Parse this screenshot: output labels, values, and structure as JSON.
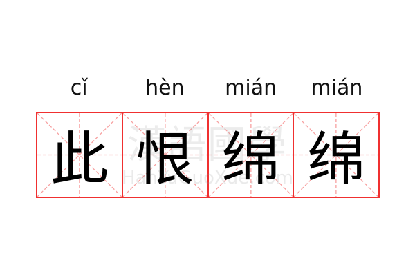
{
  "words": [
    {
      "pinyin": "cǐ",
      "char": "此"
    },
    {
      "pinyin": "hèn",
      "char": "恨"
    },
    {
      "pinyin": "mián",
      "char": "绵"
    },
    {
      "pinyin": "mián",
      "char": "绵"
    }
  ],
  "watermark": {
    "chinese": "漢語國學",
    "latin": "HanYuGuoXue.com"
  },
  "colors": {
    "grid_border": "#f03030",
    "guide_lines": "#f7a0a0",
    "text": "#000000"
  }
}
